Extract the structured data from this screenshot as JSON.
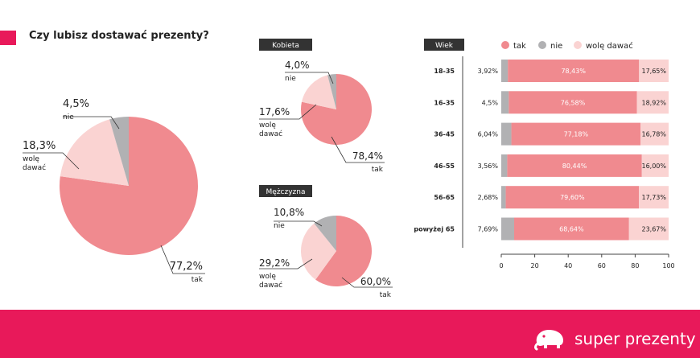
{
  "header": {
    "title": "Czy lubisz dostawać prezenty?"
  },
  "colors": {
    "tak": "#f08a8f",
    "nie": "#b1b1b3",
    "wole": "#fad3d2",
    "accent": "#e8195a"
  },
  "brand": {
    "name": "super prezenty",
    "icon": "elephant-icon"
  },
  "chart_data": [
    {
      "type": "pie",
      "title": "",
      "slices": [
        {
          "key": "tak",
          "value": 77.2,
          "label": "77,2%",
          "name": "tak"
        },
        {
          "key": "wole",
          "value": 18.3,
          "label": "18,3%",
          "name": "wolę dawać"
        },
        {
          "key": "nie",
          "value": 4.5,
          "label": "4,5%",
          "name": "nie"
        }
      ]
    },
    {
      "type": "pie",
      "title": "Kobieta",
      "slices": [
        {
          "key": "tak",
          "value": 78.4,
          "label": "78,4%",
          "name": "tak"
        },
        {
          "key": "wole",
          "value": 17.6,
          "label": "17,6%",
          "name": "wolę dawać"
        },
        {
          "key": "nie",
          "value": 4.0,
          "label": "4,0%",
          "name": "nie"
        }
      ]
    },
    {
      "type": "pie",
      "title": "Mężczyzna",
      "slices": [
        {
          "key": "tak",
          "value": 60.0,
          "label": "60,0%",
          "name": "tak"
        },
        {
          "key": "wole",
          "value": 29.2,
          "label": "29,2%",
          "name": "wolę dawać"
        },
        {
          "key": "nie",
          "value": 10.8,
          "label": "10,8%",
          "name": "nie"
        }
      ]
    },
    {
      "type": "bar",
      "orientation": "horizontal",
      "stacked": true,
      "title": "Wiek",
      "categories": [
        "18-35",
        "16-35",
        "36-45",
        "46-55",
        "56-65",
        "powyżej 65"
      ],
      "series": [
        {
          "key": "nie",
          "name": "nie",
          "values": [
            3.92,
            4.5,
            6.04,
            3.56,
            2.68,
            7.69
          ],
          "labels": [
            "3,92%",
            "4,5%",
            "6,04%",
            "3,56%",
            "2,68%",
            "7,69%"
          ]
        },
        {
          "key": "tak",
          "name": "tak",
          "values": [
            78.43,
            76.58,
            77.18,
            80.44,
            79.6,
            68.64
          ],
          "labels": [
            "78,43%",
            "76,58%",
            "77,18%",
            "80,44%",
            "79,60%",
            "68,64%"
          ]
        },
        {
          "key": "wole",
          "name": "wolę dawać",
          "values": [
            17.65,
            18.92,
            16.78,
            16.0,
            17.73,
            23.67
          ],
          "labels": [
            "17,65%",
            "18,92%",
            "16,78%",
            "16,00%",
            "17,73%",
            "23,67%"
          ]
        }
      ],
      "legend_order": [
        "tak",
        "nie",
        "wole"
      ],
      "xlim": [
        0,
        100
      ],
      "xticks": [
        0,
        20,
        40,
        60,
        80,
        100
      ],
      "grid": false,
      "legend_position": "top"
    }
  ]
}
